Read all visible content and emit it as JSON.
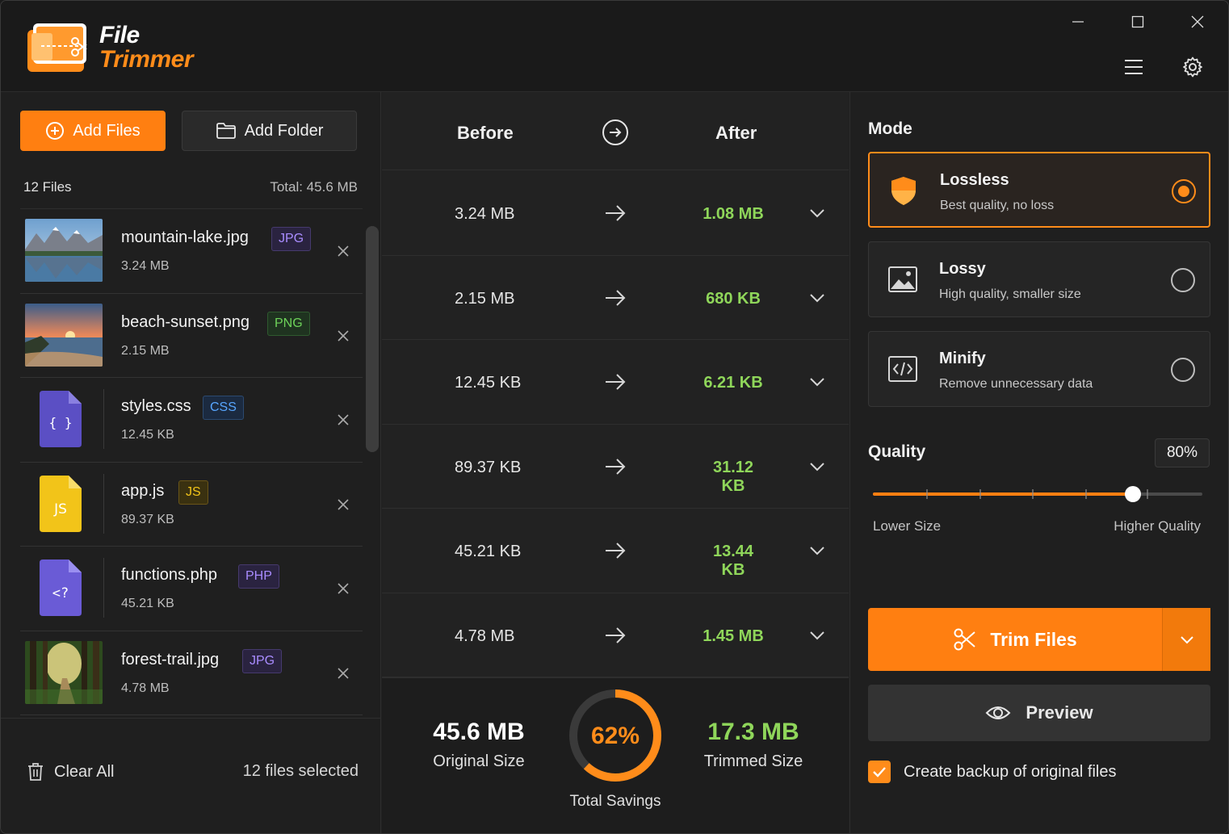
{
  "app": {
    "logo_line1": "File",
    "logo_line2": "Trimmer",
    "accent_color": "#ff7f11",
    "success_color": "#8fd65a"
  },
  "window_controls": [
    "minimize-icon",
    "maximize-icon",
    "close-icon"
  ],
  "header_icons": [
    "hamburger-menu-icon",
    "gear-icon"
  ],
  "toolbar": {
    "add_files_label": "Add Files",
    "add_folder_label": "Add Folder"
  },
  "file_list": {
    "count_label": "12 Files",
    "total_label": "Total: 45.6 MB",
    "files": [
      {
        "name": "mountain-lake.jpg",
        "type": "JPG",
        "size": "3.24 MB",
        "thumb": "mountain-lake-photo"
      },
      {
        "name": "beach-sunset.png",
        "type": "PNG",
        "size": "2.15 MB",
        "thumb": "beach-sunset-photo"
      },
      {
        "name": "styles.css",
        "type": "CSS",
        "size": "12.45 KB",
        "icon_glyph": "{ }"
      },
      {
        "name": "app.js",
        "type": "JS",
        "size": "89.37 KB",
        "icon_glyph": "JS"
      },
      {
        "name": "functions.php",
        "type": "PHP",
        "size": "45.21 KB",
        "icon_glyph": "<?"
      },
      {
        "name": "forest-trail.jpg",
        "type": "JPG",
        "size": "4.78 MB",
        "thumb": "forest-trail-photo"
      }
    ],
    "clear_all_label": "Clear All",
    "selected_label": "12 files selected"
  },
  "comparison": {
    "before_header": "Before",
    "after_header": "After",
    "rows": [
      {
        "before": "3.24 MB",
        "after": "1.08 MB"
      },
      {
        "before": "2.15 MB",
        "after": "680 KB"
      },
      {
        "before": "12.45 KB",
        "after": "6.21 KB"
      },
      {
        "before": "89.37 KB",
        "after": "31.12 KB"
      },
      {
        "before": "45.21 KB",
        "after": "13.44 KB"
      },
      {
        "before": "4.78 MB",
        "after": "1.45 MB"
      }
    ],
    "summary": {
      "original_value": "45.6 MB",
      "original_label": "Original Size",
      "savings_percent": "62%",
      "savings_fraction": 0.62,
      "savings_label": "Total Savings",
      "trimmed_value": "17.3 MB",
      "trimmed_label": "Trimmed Size"
    }
  },
  "settings": {
    "mode_title": "Mode",
    "modes": [
      {
        "name": "Lossless",
        "desc": "Best quality, no loss",
        "icon": "shield-icon",
        "selected": true
      },
      {
        "name": "Lossy",
        "desc": "High quality, smaller size",
        "icon": "image-icon",
        "selected": false
      },
      {
        "name": "Minify",
        "desc": "Remove unnecessary data",
        "icon": "code-icon",
        "selected": false
      }
    ],
    "quality_title": "Quality",
    "quality_value": "80%",
    "quality_fraction": 0.8,
    "lower_label": "Lower Size",
    "higher_label": "Higher Quality",
    "trim_label": "Trim Files",
    "preview_label": "Preview",
    "backup_label": "Create backup of original files",
    "backup_checked": true
  }
}
